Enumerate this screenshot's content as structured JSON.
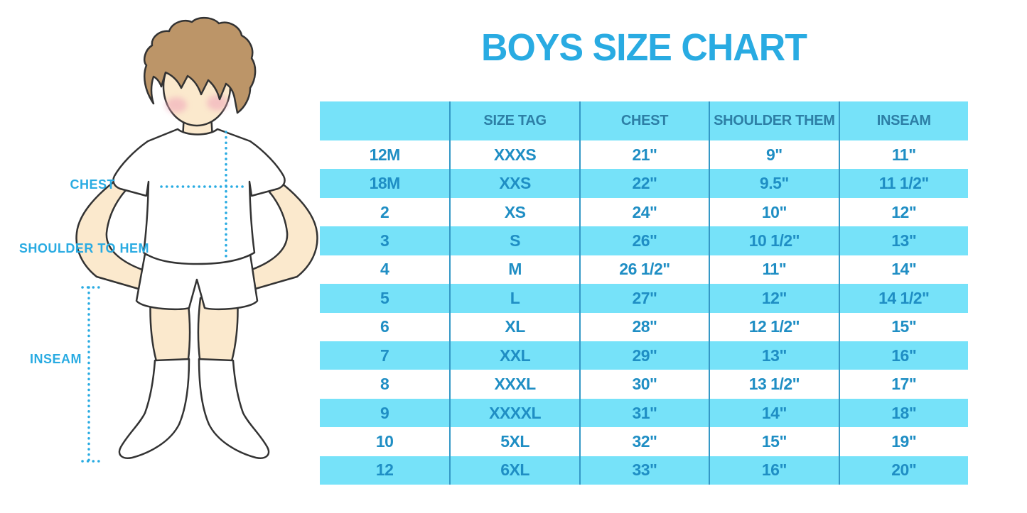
{
  "title": "BOYS SIZE CHART",
  "colors": {
    "accent_blue": "#29ABE2",
    "row_highlight": "#76E2F9",
    "cell_text": "#1F8EC4",
    "header_text": "#2D7FA6",
    "column_divider": "#3598C6",
    "hair": "#BC9568",
    "skin": "#FBE9CD",
    "blush": "#F0A9BB",
    "outline": "#333333"
  },
  "figure": {
    "labels": [
      {
        "text": "CHEST"
      },
      {
        "text": "SHOULDER TO HEM"
      },
      {
        "text": "INSEAM"
      }
    ]
  },
  "chart_data": {
    "type": "table",
    "title": "BOYS SIZE CHART",
    "columns": [
      "",
      "SIZE TAG",
      "CHEST",
      "SHOULDER THEM",
      "INSEAM"
    ],
    "rows": [
      [
        "12M",
        "XXXS",
        "21\"",
        "9\"",
        "11\""
      ],
      [
        "18M",
        "XXS",
        "22\"",
        "9.5\"",
        "11 1/2\""
      ],
      [
        "2",
        "XS",
        "24\"",
        "10\"",
        "12\""
      ],
      [
        "3",
        "S",
        "26\"",
        "10 1/2\"",
        "13\""
      ],
      [
        "4",
        "M",
        "26 1/2\"",
        "11\"",
        "14\""
      ],
      [
        "5",
        "L",
        "27\"",
        "12\"",
        "14 1/2\""
      ],
      [
        "6",
        "XL",
        "28\"",
        "12 1/2\"",
        "15\""
      ],
      [
        "7",
        "XXL",
        "29\"",
        "13\"",
        "16\""
      ],
      [
        "8",
        "XXXL",
        "30\"",
        "13 1/2\"",
        "17\""
      ],
      [
        "9",
        "XXXXL",
        "31\"",
        "14\"",
        "18\""
      ],
      [
        "10",
        "5XL",
        "32\"",
        "15\"",
        "19\""
      ],
      [
        "12",
        "6XL",
        "33\"",
        "16\"",
        "20\""
      ]
    ]
  }
}
